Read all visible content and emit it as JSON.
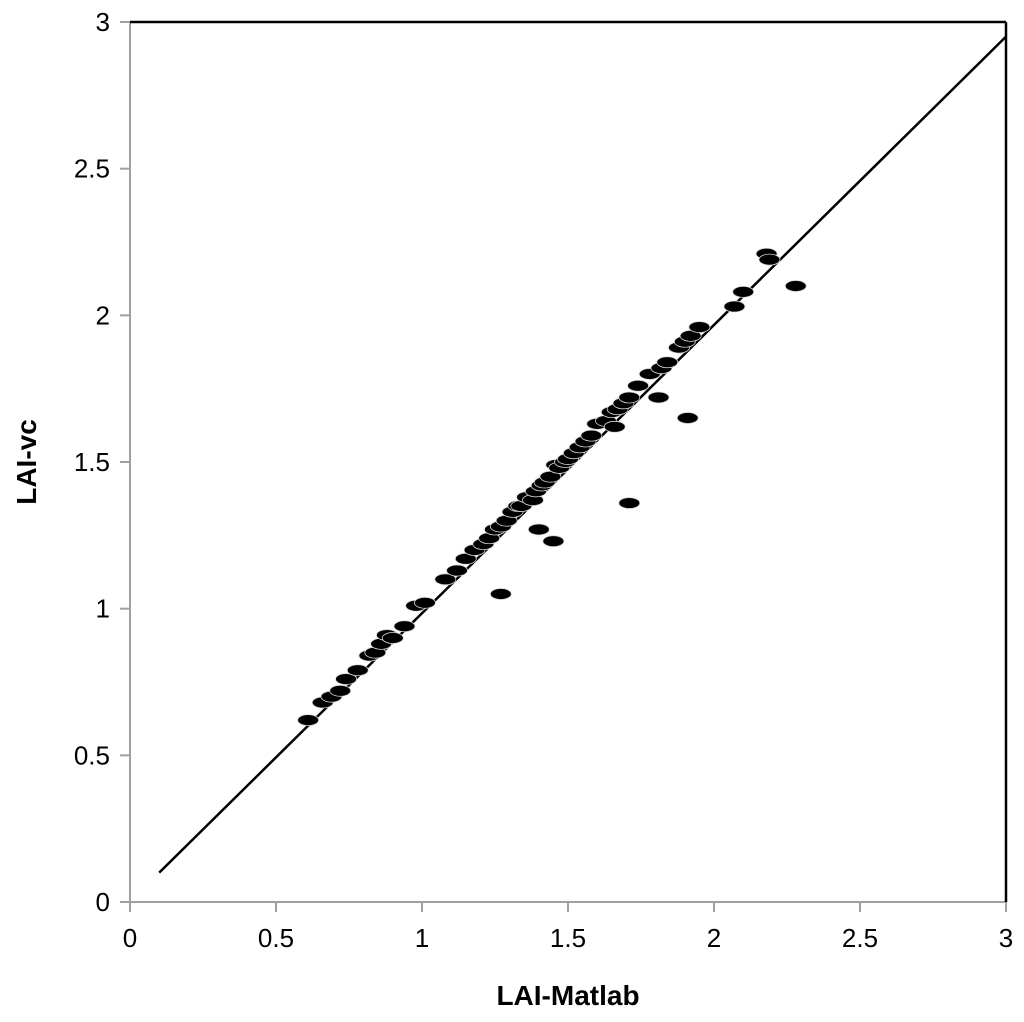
{
  "chart_data": {
    "type": "scatter",
    "title": "",
    "xlabel": "LAI-Matlab",
    "ylabel": "LAI-vc",
    "xlim": [
      0,
      3
    ],
    "ylim": [
      0,
      3
    ],
    "xticks": [
      "0",
      "0.5",
      "1",
      "1.5",
      "2",
      "2.5",
      "3"
    ],
    "yticks": [
      "0",
      "0.5",
      "1",
      "1.5",
      "2",
      "2.5",
      "3"
    ],
    "grid": false,
    "legend": "none",
    "colors": {
      "points": "#000000",
      "line": "#000000",
      "axis": "#a0a0a0",
      "frame": "#000000"
    },
    "reference_line": {
      "x": [
        0.1,
        3.0
      ],
      "y": [
        0.1,
        2.95
      ]
    },
    "series": [
      {
        "x": [
          0.61,
          0.66,
          0.69,
          0.72,
          0.74,
          0.78,
          0.82,
          0.84,
          0.86,
          0.88,
          0.9,
          0.94,
          0.98,
          1.01,
          1.08,
          1.12,
          1.15,
          1.18,
          1.21,
          1.23,
          1.25,
          1.27,
          1.29,
          1.31,
          1.33,
          1.34,
          1.36,
          1.38,
          1.39,
          1.41,
          1.42,
          1.44,
          1.46,
          1.47,
          1.49,
          1.5,
          1.52,
          1.54,
          1.56,
          1.58,
          1.6,
          1.63,
          1.65,
          1.67,
          1.69,
          1.71,
          1.74,
          1.78,
          1.82,
          1.84,
          1.88,
          1.9,
          1.92,
          1.95,
          2.07,
          2.1,
          2.18,
          2.19,
          1.27,
          1.4,
          1.45,
          1.71,
          1.66,
          1.81,
          1.91,
          2.28
        ],
        "y": [
          0.62,
          0.68,
          0.7,
          0.72,
          0.76,
          0.79,
          0.84,
          0.85,
          0.88,
          0.91,
          0.9,
          0.94,
          1.01,
          1.02,
          1.1,
          1.13,
          1.17,
          1.2,
          1.22,
          1.24,
          1.27,
          1.28,
          1.3,
          1.33,
          1.35,
          1.35,
          1.38,
          1.37,
          1.4,
          1.42,
          1.43,
          1.45,
          1.49,
          1.48,
          1.5,
          1.51,
          1.53,
          1.55,
          1.57,
          1.59,
          1.63,
          1.64,
          1.67,
          1.68,
          1.7,
          1.72,
          1.76,
          1.8,
          1.82,
          1.84,
          1.89,
          1.91,
          1.93,
          1.96,
          2.03,
          2.08,
          2.21,
          2.19,
          1.05,
          1.27,
          1.23,
          1.36,
          1.62,
          1.72,
          1.65,
          2.1
        ]
      }
    ]
  }
}
